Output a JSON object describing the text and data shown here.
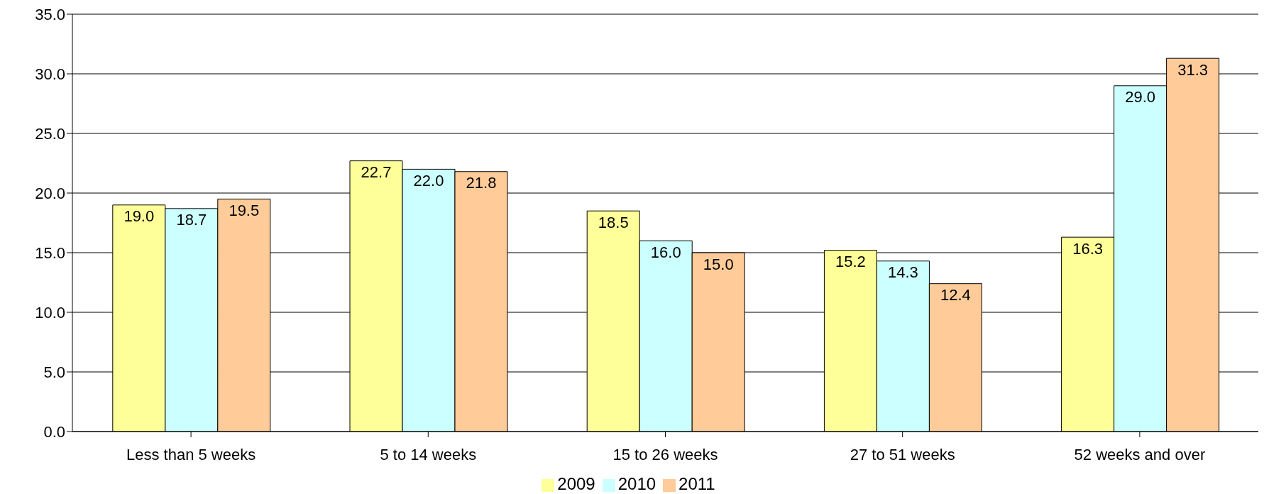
{
  "chart_data": {
    "type": "bar",
    "categories": [
      "Less than 5 weeks",
      "5 to 14 weeks",
      "15 to 26 weeks",
      "27 to 51 weeks",
      "52 weeks and over"
    ],
    "series": [
      {
        "name": "2009",
        "color": "#ffff99",
        "values": [
          19.0,
          22.7,
          18.5,
          15.2,
          16.3
        ],
        "value_labels": [
          "19.0",
          "22.7",
          "18.5",
          "15.2",
          "16.3"
        ]
      },
      {
        "name": "2010",
        "color": "#ccffff",
        "values": [
          18.7,
          22.0,
          16.0,
          14.3,
          29.0
        ],
        "value_labels": [
          "18.7",
          "22.0",
          "16.0",
          "14.3",
          "29.0"
        ]
      },
      {
        "name": "2011",
        "color": "#ffcc99",
        "values": [
          19.5,
          21.8,
          15.0,
          12.4,
          31.3
        ],
        "value_labels": [
          "19.5",
          "21.8",
          "15.0",
          "12.4",
          "31.3"
        ]
      }
    ],
    "ylim": [
      0,
      35
    ],
    "yticks": [
      {
        "value": 0,
        "label": "0.0"
      },
      {
        "value": 5,
        "label": "5.0"
      },
      {
        "value": 10,
        "label": "10.0"
      },
      {
        "value": 15,
        "label": "15.0"
      },
      {
        "value": 20,
        "label": "20.0"
      },
      {
        "value": 25,
        "label": "25.0"
      },
      {
        "value": 30,
        "label": "30.0"
      },
      {
        "value": 35,
        "label": "35.0"
      }
    ],
    "grid": "y",
    "legend": "bottom"
  }
}
